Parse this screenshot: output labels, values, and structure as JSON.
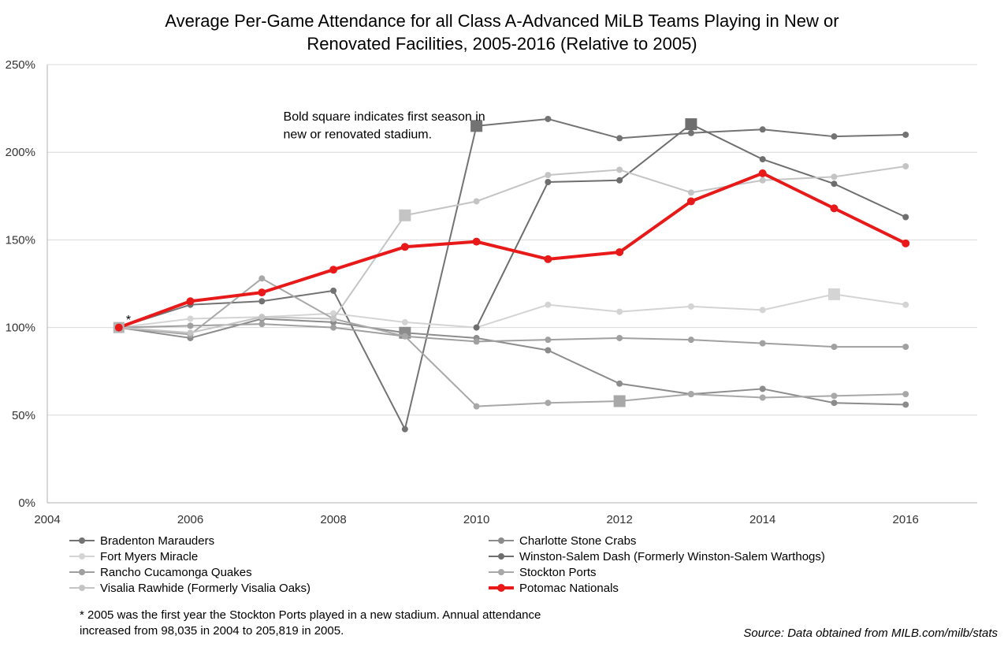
{
  "chart_data": {
    "type": "line",
    "title": "Average Per-Game Attendance for all Class A-Advanced MiLB Teams Playing in New or\nRenovated Facilities, 2005-2016 (Relative to 2005)",
    "xlim": [
      2004,
      2017
    ],
    "ylim": [
      0,
      250
    ],
    "x_ticks": [
      2004,
      2006,
      2008,
      2010,
      2012,
      2014,
      2016
    ],
    "x_tick_labels": [
      "2004",
      "2006",
      "2008",
      "2010",
      "2012",
      "2014",
      "2016"
    ],
    "y_ticks": [
      0,
      50,
      100,
      150,
      200,
      250
    ],
    "y_tick_labels": [
      "0%",
      "50%",
      "100%",
      "150%",
      "200%",
      "250%"
    ],
    "grid": "horizontal",
    "legend_position": "bottom",
    "x": [
      2005,
      2006,
      2007,
      2008,
      2009,
      2010,
      2011,
      2012,
      2013,
      2014,
      2015,
      2016
    ],
    "series": [
      {
        "name": "Bradenton Marauders",
        "color": "#737373",
        "width": 2,
        "values": [
          100,
          113,
          115,
          121,
          42,
          215,
          219,
          208,
          211,
          213,
          209,
          210
        ],
        "new_stadium_year": 2010
      },
      {
        "name": "Charlotte Stone Crabs",
        "color": "#8c8c8c",
        "width": 2,
        "values": [
          100,
          94,
          105,
          103,
          97,
          94,
          87,
          68,
          62,
          65,
          57,
          56
        ],
        "new_stadium_year": 2009
      },
      {
        "name": "Fort Myers Miracle",
        "color": "#d4d4d4",
        "width": 2,
        "values": [
          100,
          105,
          106,
          108,
          103,
          100,
          113,
          109,
          112,
          110,
          119,
          113
        ],
        "new_stadium_year": 2015
      },
      {
        "name": "Winston-Salem Dash (Formerly Winston-Salem Warthogs)",
        "color": "#6e6e6e",
        "width": 2,
        "values": [
          null,
          null,
          null,
          null,
          null,
          100,
          183,
          184,
          216,
          196,
          182,
          163
        ],
        "new_stadium_year": 2013
      },
      {
        "name": "Rancho Cucamonga Quakes",
        "color": "#a0a0a0",
        "width": 2,
        "values": [
          100,
          101,
          102,
          100,
          95,
          92,
          93,
          94,
          93,
          91,
          89,
          89
        ],
        "new_stadium_year": null
      },
      {
        "name": "Stockton Ports",
        "color": "#a8a8a8",
        "width": 2,
        "values": [
          100,
          96,
          128,
          105,
          95,
          55,
          57,
          58,
          62,
          60,
          61,
          62
        ],
        "new_stadium_year": 2012
      },
      {
        "name": "Visalia Rawhide (Formerly Visalia Oaks)",
        "color": "#c4c4c4",
        "width": 2,
        "values": [
          100,
          97,
          106,
          105,
          164,
          172,
          187,
          190,
          177,
          184,
          186,
          192
        ],
        "new_stadium_year": 2009
      },
      {
        "name": "Potomac Nationals",
        "color": "#e81919",
        "width": 4,
        "values": [
          100,
          115,
          120,
          133,
          146,
          149,
          139,
          143,
          172,
          188,
          168,
          148
        ],
        "new_stadium_year": null
      }
    ],
    "annotations": [
      {
        "text": "Bold square indicates first season in",
        "x": 2007.3,
        "y": 218
      },
      {
        "text": "new or renovated stadium.",
        "x": 2007.3,
        "y": 208
      },
      {
        "text": "*",
        "x": 2005.1,
        "y": 102
      }
    ]
  },
  "footnote": {
    "line1": "*  2005 was the first year the Stockton Ports played in a new stadium. Annual attendance",
    "line2": "increased from 98,035 in 2004 to 205,819 in 2005."
  },
  "source": "Source: Data obtained from MILB.com/milb/stats"
}
